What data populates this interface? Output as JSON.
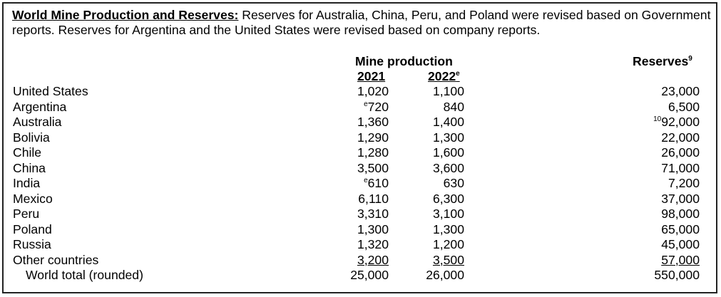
{
  "heading": {
    "title": "World Mine Production and Reserves:",
    "text": " Reserves for Australia, China, Peru, and Poland were revised based on Government reports. Reserves for Argentina and the United States were revised based on company reports."
  },
  "columns": {
    "group": "Mine production",
    "year1": "2021",
    "year2": "2022",
    "year2_sup": "e",
    "reserves": "Reserves",
    "reserves_sup": "9"
  },
  "rows": [
    {
      "country": "United States",
      "y2021": "1,020",
      "y2021_sup": "",
      "y2022": "1,100",
      "reserves": "23,000",
      "reserves_sup": ""
    },
    {
      "country": "Argentina",
      "y2021": "720",
      "y2021_sup": "e",
      "y2022": "840",
      "reserves": "6,500",
      "reserves_sup": ""
    },
    {
      "country": "Australia",
      "y2021": "1,360",
      "y2021_sup": "",
      "y2022": "1,400",
      "reserves": "92,000",
      "reserves_sup": "10"
    },
    {
      "country": "Bolivia",
      "y2021": "1,290",
      "y2021_sup": "",
      "y2022": "1,300",
      "reserves": "22,000",
      "reserves_sup": ""
    },
    {
      "country": "Chile",
      "y2021": "1,280",
      "y2021_sup": "",
      "y2022": "1,600",
      "reserves": "26,000",
      "reserves_sup": ""
    },
    {
      "country": "China",
      "y2021": "3,500",
      "y2021_sup": "",
      "y2022": "3,600",
      "reserves": "71,000",
      "reserves_sup": ""
    },
    {
      "country": "India",
      "y2021": "610",
      "y2021_sup": "e",
      "y2022": "630",
      "reserves": "7,200",
      "reserves_sup": ""
    },
    {
      "country": "Mexico",
      "y2021": "6,110",
      "y2021_sup": "",
      "y2022": "6,300",
      "reserves": "37,000",
      "reserves_sup": ""
    },
    {
      "country": "Peru",
      "y2021": "3,310",
      "y2021_sup": "",
      "y2022": "3,100",
      "reserves": "98,000",
      "reserves_sup": ""
    },
    {
      "country": "Poland",
      "y2021": "1,300",
      "y2021_sup": "",
      "y2022": "1,300",
      "reserves": "65,000",
      "reserves_sup": ""
    },
    {
      "country": "Russia",
      "y2021": "1,320",
      "y2021_sup": "",
      "y2022": "1,200",
      "reserves": "45,000",
      "reserves_sup": ""
    },
    {
      "country": "Other countries",
      "y2021": "3,200",
      "y2021_sup": "",
      "y2022": "3,500",
      "reserves": "57,000",
      "reserves_sup": ""
    }
  ],
  "total": {
    "country": "World total (rounded)",
    "y2021": "25,000",
    "y2022": "26,000",
    "reserves": "550,000"
  }
}
